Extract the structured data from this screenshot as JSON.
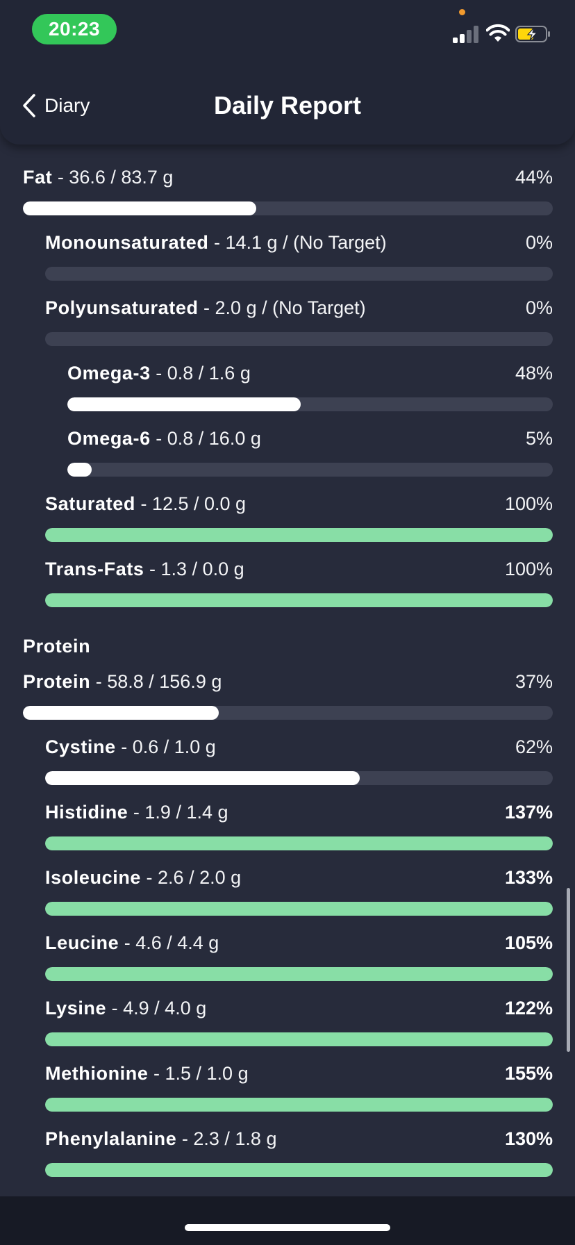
{
  "status_bar": {
    "time": "20:23"
  },
  "header": {
    "back_label": "Diary",
    "title": "Daily Report"
  },
  "sections": {
    "protein_title": "Protein"
  },
  "nutrients": [
    {
      "id": "fat",
      "name": "Fat",
      "detail": " - 36.6 / 83.7 g",
      "percent": "44%",
      "fill_fraction": 0.44,
      "over": false
    },
    {
      "id": "monounsaturated",
      "name": "Monounsaturated",
      "detail": " - 14.1 g / (No Target)",
      "percent": "0%",
      "fill_fraction": 0,
      "over": false
    },
    {
      "id": "polyunsaturated",
      "name": "Polyunsaturated",
      "detail": " - 2.0 g / (No Target)",
      "percent": "0%",
      "fill_fraction": 0,
      "over": false
    },
    {
      "id": "omega-3",
      "name": "Omega-3",
      "detail": " - 0.8 / 1.6 g",
      "percent": "48%",
      "fill_fraction": 0.48,
      "over": false
    },
    {
      "id": "omega-6",
      "name": "Omega-6",
      "detail": " - 0.8 / 16.0 g",
      "percent": "5%",
      "fill_fraction": 0.05,
      "over": false
    },
    {
      "id": "saturated",
      "name": "Saturated",
      "detail": " - 12.5 / 0.0 g",
      "percent": "100%",
      "fill_fraction": 1,
      "over": false
    },
    {
      "id": "trans-fats",
      "name": "Trans-Fats",
      "detail": " - 1.3 / 0.0 g",
      "percent": "100%",
      "fill_fraction": 1,
      "over": false
    },
    {
      "id": "protein",
      "name": "Protein",
      "detail": " - 58.8 / 156.9 g",
      "percent": "37%",
      "fill_fraction": 0.37,
      "over": false
    },
    {
      "id": "cystine",
      "name": "Cystine",
      "detail": " - 0.6 / 1.0 g",
      "percent": "62%",
      "fill_fraction": 0.62,
      "over": false
    },
    {
      "id": "histidine",
      "name": "Histidine",
      "detail": " - 1.9 / 1.4 g",
      "percent": "137%",
      "fill_fraction": 1,
      "over": true
    },
    {
      "id": "isoleucine",
      "name": "Isoleucine",
      "detail": " - 2.6 / 2.0 g",
      "percent": "133%",
      "fill_fraction": 1,
      "over": true
    },
    {
      "id": "leucine",
      "name": "Leucine",
      "detail": " - 4.6 / 4.4 g",
      "percent": "105%",
      "fill_fraction": 1,
      "over": true
    },
    {
      "id": "lysine",
      "name": "Lysine",
      "detail": " - 4.9 / 4.0 g",
      "percent": "122%",
      "fill_fraction": 1,
      "over": true
    },
    {
      "id": "methionine",
      "name": "Methionine",
      "detail": " - 1.5 / 1.0 g",
      "percent": "155%",
      "fill_fraction": 1,
      "over": true
    },
    {
      "id": "phenylalanine",
      "name": "Phenylalanine",
      "detail": " - 2.3 / 1.8 g",
      "percent": "130%",
      "fill_fraction": 1,
      "over": true
    }
  ],
  "colors": {
    "background": "#272b3b",
    "header": "#222636",
    "track": "#3d4152",
    "progress_fill": "#ffffff",
    "complete_fill": "#88dea6",
    "time_pill": "#33c759"
  },
  "icons": {
    "back": "chevron-left-icon",
    "signal": "cellular-signal-icon",
    "wifi": "wifi-icon",
    "battery": "battery-charging-icon"
  }
}
